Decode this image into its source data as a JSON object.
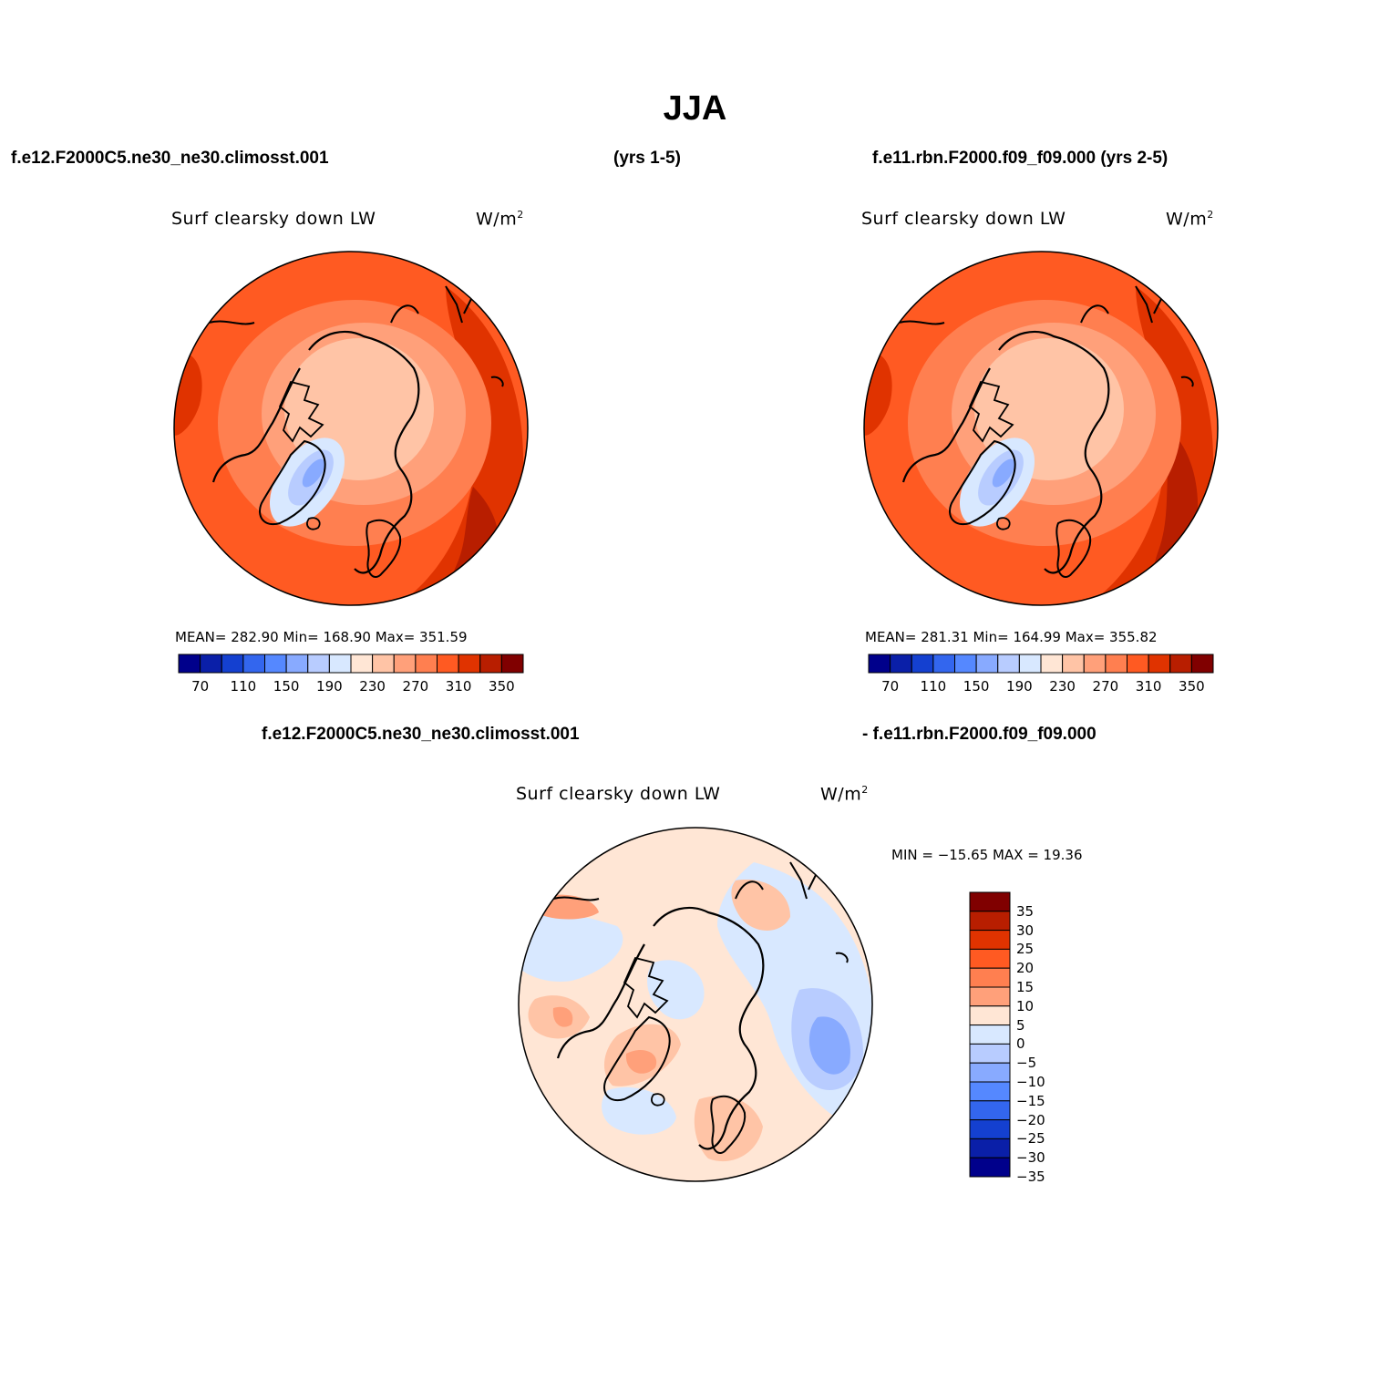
{
  "title": "JJA",
  "headers": {
    "left": "f.e12.F2000C5.ne30_ne30.climosst.001",
    "middle": "(yrs 1-5)",
    "right": "f.e11.rbn.F2000.f09_f09.000 (yrs 2-5)"
  },
  "diff_header": {
    "left": "f.e12.F2000C5.ne30_ne30.climosst.001",
    "right": "- f.e11.rbn.F2000.f09_f09.000"
  },
  "panels": [
    {
      "field": "Surf clearsky down LW",
      "units_base": "W/m",
      "units_exp": "2",
      "stats": "MEAN=  282.90   Min=  168.90   Max=  351.59"
    },
    {
      "field": "Surf clearsky down LW",
      "units_base": "W/m",
      "units_exp": "2",
      "stats": "MEAN=  281.31   Min=  164.99   Max=  355.82"
    }
  ],
  "diff_panel": {
    "field": "Surf clearsky down LW",
    "units_base": "W/m",
    "units_exp": "2",
    "stats": "MIN = −15.65  MAX =   19.36"
  },
  "colorbar_abs": {
    "colors": [
      "#00008b",
      "#0a1fa8",
      "#1440d0",
      "#3366ee",
      "#5588ff",
      "#88aaff",
      "#b8ccff",
      "#d8e8ff",
      "#ffe6d5",
      "#ffc4a6",
      "#ffa07a",
      "#ff7f50",
      "#ff5a22",
      "#e03300",
      "#b81e00",
      "#800000"
    ],
    "tick_labels": [
      "70",
      "110",
      "150",
      "190",
      "230",
      "270",
      "310",
      "350"
    ]
  },
  "colorbar_diff": {
    "colors": [
      "#800000",
      "#b81e00",
      "#e03300",
      "#ff5a22",
      "#ff7f50",
      "#ffa07a",
      "#ffe6d5",
      "#d8e8ff",
      "#b8ccff",
      "#88aaff",
      "#5588ff",
      "#3366ee",
      "#1440d0",
      "#0a1fa8",
      "#00008b"
    ],
    "labels": [
      "35",
      "30",
      "25",
      "20",
      "15",
      "10",
      "5",
      "0",
      "−5",
      "−10",
      "−15",
      "−20",
      "−25",
      "−30",
      "−35"
    ]
  }
}
